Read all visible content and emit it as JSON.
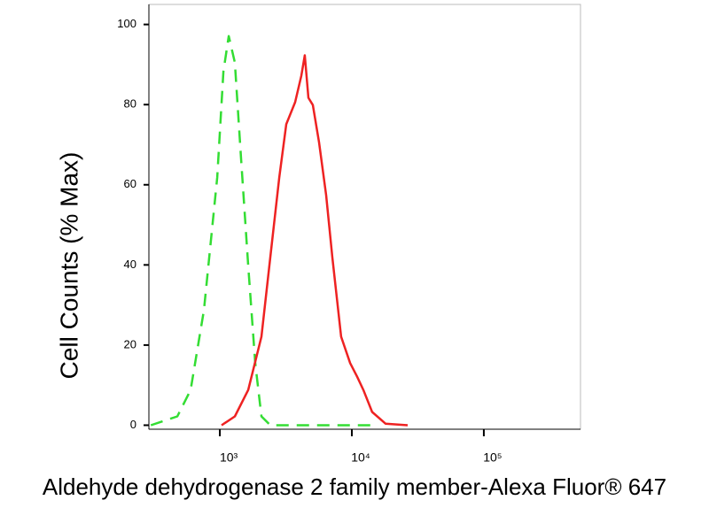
{
  "chart_data": {
    "type": "line",
    "x_label": "Aldehyde dehydrogenase 2 family member-Alexa Fluor® 647",
    "y_label": "Cell Counts (% Max)",
    "x_scale": "log",
    "xlim": [
      290,
      540000
    ],
    "ylim": [
      -1,
      105
    ],
    "xticks": [
      {
        "value": 1000,
        "label": "10³"
      },
      {
        "value": 10000,
        "label": "10⁴"
      },
      {
        "value": 100000,
        "label": "10⁵"
      }
    ],
    "yticks": [
      0,
      20,
      40,
      60,
      80,
      100
    ],
    "series": [
      {
        "color": "#33dd33",
        "dash": true,
        "x": [
          300,
          476,
          601,
          757,
          955,
          1064,
          1167,
          1300,
          1449,
          1640,
          1855,
          2066,
          2413,
          14260
        ],
        "values": [
          0,
          2.2,
          8.8,
          28.7,
          61.8,
          88.3,
          97.1,
          90.5,
          66.2,
          39.7,
          15.5,
          2.2,
          0,
          0
        ]
      },
      {
        "color": "#ee2222",
        "dash": false,
        "x": [
          1031,
          1300,
          1640,
          2066,
          2413,
          2818,
          3187,
          3718,
          4143,
          4403,
          4688,
          5066,
          5645,
          6383,
          7117,
          8300,
          9705,
          10965,
          12220,
          14260,
          17990,
          26470
        ],
        "values": [
          0,
          2.2,
          8.8,
          22.1,
          41.9,
          61.8,
          75.1,
          80.6,
          87.2,
          92.3,
          81.7,
          79.9,
          70.6,
          57.4,
          41.9,
          22.1,
          15.5,
          12.1,
          8.8,
          3.3,
          0.4,
          0
        ]
      }
    ]
  }
}
